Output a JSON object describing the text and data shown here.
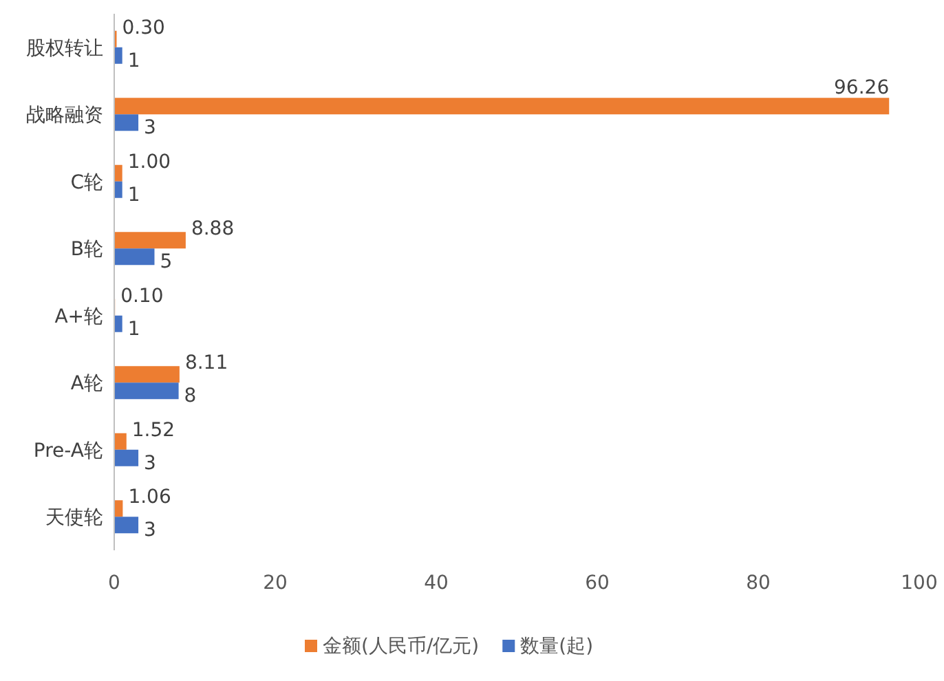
{
  "chart_data": {
    "type": "bar",
    "orientation": "horizontal",
    "categories": [
      "股权转让",
      "战略融资",
      "C轮",
      "B轮",
      "A+轮",
      "A轮",
      "Pre-A轮",
      "天使轮"
    ],
    "series": [
      {
        "name": "金额(人民币/亿元)",
        "color": "#ed7d31",
        "values": [
          0.3,
          96.26,
          1.0,
          8.88,
          0.1,
          8.11,
          1.52,
          1.06
        ],
        "value_labels": [
          "0.30",
          "96.26",
          "1.00",
          "8.88",
          "0.10",
          "8.11",
          "1.52",
          "1.06"
        ]
      },
      {
        "name": "数量(起)",
        "color": "#4472c4",
        "values": [
          1,
          3,
          1,
          5,
          1,
          8,
          3,
          3
        ],
        "value_labels": [
          "1",
          "3",
          "1",
          "5",
          "1",
          "8",
          "3",
          "3"
        ]
      }
    ],
    "xlim": [
      0,
      100
    ],
    "xticks": [
      0,
      20,
      40,
      60,
      80,
      100
    ],
    "grid": false,
    "legend": "bottom"
  }
}
